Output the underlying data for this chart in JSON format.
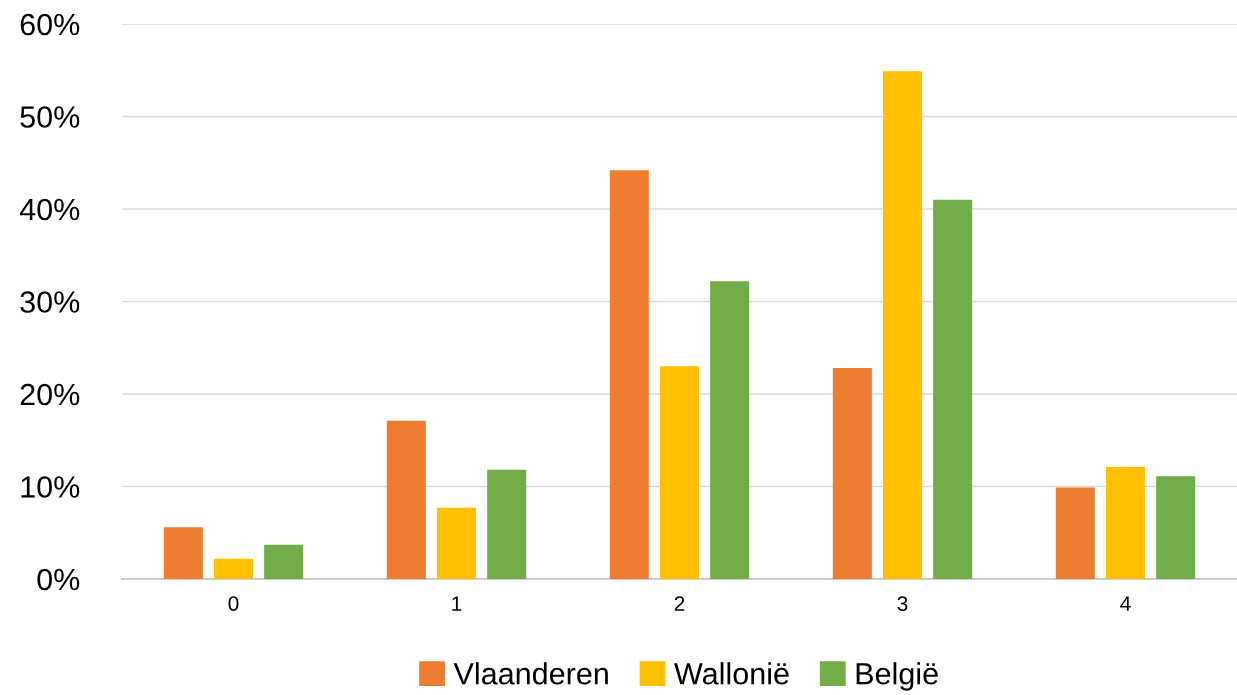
{
  "chart_data": {
    "type": "bar",
    "categories": [
      "0",
      "1",
      "2",
      "3",
      "4"
    ],
    "series": [
      {
        "name": "Vlaanderen",
        "color": "#ed7d31",
        "values": [
          5.6,
          17.1,
          44.2,
          22.8,
          9.9
        ]
      },
      {
        "name": "Wallonië",
        "color": "#ffc000",
        "values": [
          2.2,
          7.7,
          23.0,
          54.9,
          12.1
        ]
      },
      {
        "name": "België",
        "color": "#70ad47",
        "values": [
          3.7,
          11.8,
          32.2,
          41.0,
          11.1
        ]
      }
    ],
    "ylim": [
      0,
      60
    ],
    "yticks": [
      {
        "value": 0,
        "label": "0%"
      },
      {
        "value": 10,
        "label": "10%"
      },
      {
        "value": 20,
        "label": "20%"
      },
      {
        "value": 30,
        "label": "30%"
      },
      {
        "value": 40,
        "label": "40%"
      },
      {
        "value": 50,
        "label": "50%"
      },
      {
        "value": 60,
        "label": "60%"
      }
    ],
    "grid": "y",
    "legend": "bottom"
  }
}
